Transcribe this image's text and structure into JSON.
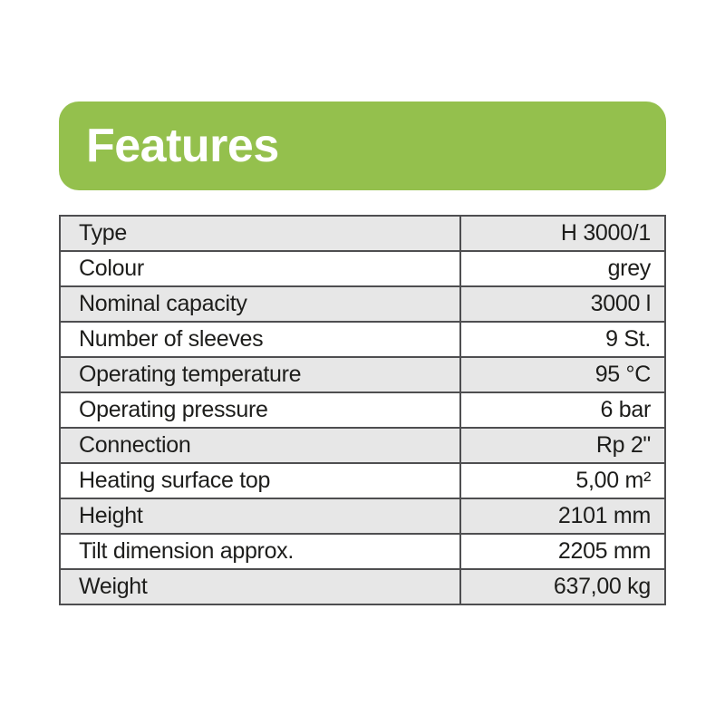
{
  "colors": {
    "accent": "#94c04d",
    "accent_text": "#ffffff",
    "row_alt": "#e7e7e7",
    "border": "#4e4e50",
    "text": "#1d1d1b",
    "page_background": "#ffffff"
  },
  "header": {
    "title": "Features"
  },
  "table": {
    "columns": [
      "property",
      "value"
    ],
    "rows": [
      {
        "label": "Type",
        "value": "H 3000/1"
      },
      {
        "label": "Colour",
        "value": "grey"
      },
      {
        "label": "Nominal capacity",
        "value": "3000 l"
      },
      {
        "label": "Number of sleeves",
        "value": "9 St."
      },
      {
        "label": "Operating temperature",
        "value": "95 °C"
      },
      {
        "label": "Operating pressure",
        "value": "6 bar"
      },
      {
        "label": "Connection",
        "value": "Rp 2\""
      },
      {
        "label": "Heating surface top",
        "value": "5,00 m²"
      },
      {
        "label": "Height",
        "value": "2101 mm"
      },
      {
        "label": "Tilt dimension approx.",
        "value": "2205 mm"
      },
      {
        "label": "Weight",
        "value": "637,00 kg"
      }
    ]
  }
}
